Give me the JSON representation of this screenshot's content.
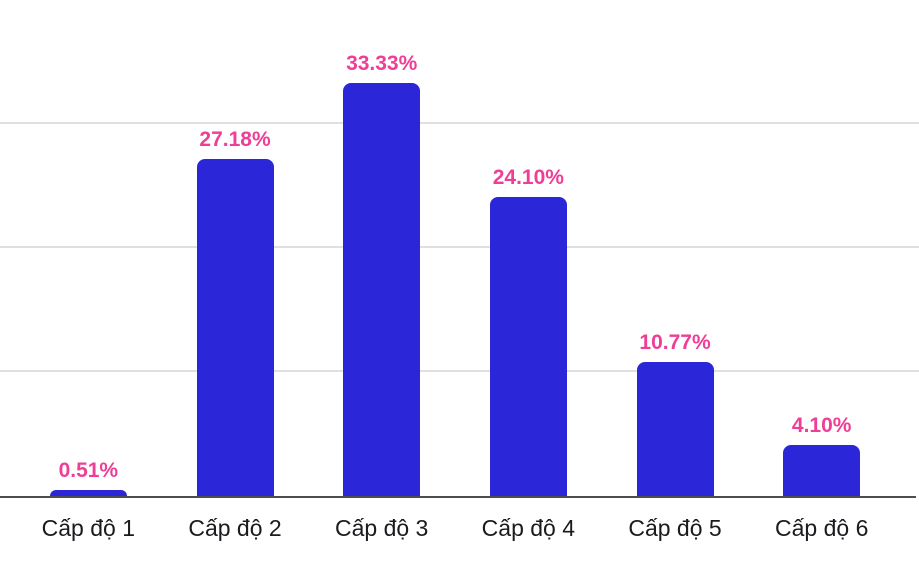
{
  "chart_data": {
    "type": "bar",
    "categories": [
      "Cấp độ 1",
      "Cấp độ 2",
      "Cấp độ 3",
      "Cấp độ 4",
      "Cấp độ 5",
      "Cấp độ 6"
    ],
    "values": [
      0.51,
      27.18,
      33.33,
      24.1,
      10.77,
      4.1
    ],
    "value_labels": [
      "0.51%",
      "27.18%",
      "33.33%",
      "24.10%",
      "10.77%",
      "4.10%"
    ],
    "title": "",
    "xlabel": "",
    "ylabel": "",
    "ylim": [
      0,
      40
    ],
    "gridline_values": [
      10,
      20,
      30,
      40
    ],
    "grid": "horizontal",
    "legend": "none",
    "y_tick_labels_visible": false,
    "colors": {
      "bar": "#2b27d8",
      "value_label": "#ee3e96",
      "category_label": "#1a1a1f",
      "gridline": "#e0e0e0",
      "axis_line": "#4d4d4d",
      "background": "#ffffff"
    }
  }
}
